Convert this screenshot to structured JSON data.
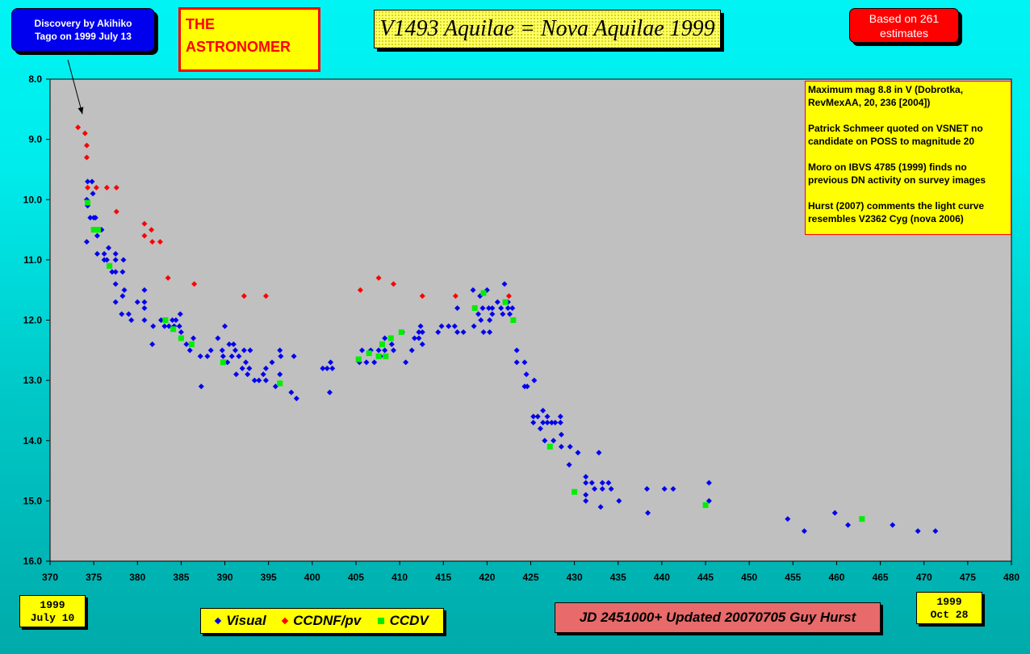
{
  "discovery_note": "Discovery by Akihiko Tago on 1999 July 13",
  "publisher": "THE ASTRONOMER",
  "based_on": "Based on 261 estimates",
  "notes": [
    "Maximum mag 8.8 in V (Dobrotka, RevMexAA, 20, 236 [2004])",
    "Patrick Schmeer quoted on VSNET no candidate on POSS to magnitude 20",
    "Moro on IBVS 4785 (1999) finds no previous DN activity on survey images",
    "Hurst (2007) comments the light curve resembles V2362 Cyg (nova 2006)"
  ],
  "date_start": {
    "year": "1999",
    "day": "July 10"
  },
  "date_end": {
    "year": "1999",
    "day": "Oct 28"
  },
  "footer": "JD 2451000+ Updated 20070705 Guy Hurst",
  "chart_data": {
    "type": "scatter",
    "title": "V1493 Aquilae = Nova Aquilae 1999",
    "xlabel": "",
    "ylabel": "",
    "xlim": [
      370,
      480
    ],
    "ylim": [
      8.0,
      16.0
    ],
    "y_inverted": true,
    "x_ticks": [
      370,
      375,
      380,
      385,
      390,
      395,
      400,
      405,
      410,
      415,
      420,
      425,
      430,
      435,
      440,
      445,
      450,
      455,
      460,
      465,
      470,
      475,
      480
    ],
    "y_ticks": [
      "8.0",
      "9.0",
      "10.0",
      "11.0",
      "12.0",
      "13.0",
      "14.0",
      "15.0",
      "16.0"
    ],
    "plot_background": "#c0c0c0",
    "grid": false,
    "legend_position": "bottom",
    "annotation_arrow": {
      "from": [
        373.7,
        8.0
      ],
      "to": [
        373.7,
        8.58
      ]
    },
    "series": [
      {
        "name": "Visual",
        "marker": "diamond",
        "color": "#0000ee",
        "points": [
          [
            374.3,
            9.7
          ],
          [
            374.8,
            9.7
          ],
          [
            374.2,
            10.0
          ],
          [
            374.3,
            10.1
          ],
          [
            374.6,
            10.3
          ],
          [
            375.0,
            10.3
          ],
          [
            375.2,
            10.3
          ],
          [
            374.9,
            9.9
          ],
          [
            374.2,
            10.7
          ],
          [
            375.4,
            10.6
          ],
          [
            375.4,
            10.9
          ],
          [
            375.9,
            10.5
          ],
          [
            376.2,
            10.9
          ],
          [
            376.2,
            11.0
          ],
          [
            376.5,
            11.0
          ],
          [
            376.7,
            10.8
          ],
          [
            376.8,
            11.1
          ],
          [
            377.1,
            11.2
          ],
          [
            377.5,
            10.9
          ],
          [
            377.5,
            11.0
          ],
          [
            377.5,
            11.2
          ],
          [
            377.5,
            11.4
          ],
          [
            377.5,
            11.7
          ],
          [
            378.4,
            11.0
          ],
          [
            378.3,
            11.2
          ],
          [
            378.3,
            11.6
          ],
          [
            378.2,
            11.9
          ],
          [
            378.5,
            11.5
          ],
          [
            379.0,
            11.9
          ],
          [
            379.3,
            12.0
          ],
          [
            380.0,
            11.7
          ],
          [
            380.8,
            11.5
          ],
          [
            380.8,
            11.7
          ],
          [
            380.8,
            11.8
          ],
          [
            380.8,
            12.0
          ],
          [
            381.8,
            12.1
          ],
          [
            381.7,
            12.4
          ],
          [
            382.7,
            12.0
          ],
          [
            383.1,
            12.1
          ],
          [
            383.6,
            12.1
          ],
          [
            384.0,
            12.0
          ],
          [
            384.2,
            12.1
          ],
          [
            384.4,
            12.0
          ],
          [
            384.8,
            12.1
          ],
          [
            384.9,
            11.9
          ],
          [
            385.0,
            12.2
          ],
          [
            385.6,
            12.4
          ],
          [
            386.0,
            12.5
          ],
          [
            386.4,
            12.3
          ],
          [
            387.3,
            13.1
          ],
          [
            387.2,
            12.6
          ],
          [
            388.0,
            12.6
          ],
          [
            388.4,
            12.5
          ],
          [
            389.2,
            12.3
          ],
          [
            389.7,
            12.5
          ],
          [
            390.0,
            12.1
          ],
          [
            389.8,
            12.6
          ],
          [
            390.3,
            12.7
          ],
          [
            390.5,
            12.4
          ],
          [
            390.8,
            12.6
          ],
          [
            391.0,
            12.4
          ],
          [
            391.2,
            12.5
          ],
          [
            391.3,
            12.9
          ],
          [
            391.6,
            12.6
          ],
          [
            392.0,
            12.8
          ],
          [
            392.2,
            12.5
          ],
          [
            392.4,
            12.7
          ],
          [
            392.6,
            12.9
          ],
          [
            392.9,
            12.5
          ],
          [
            392.8,
            12.8
          ],
          [
            393.4,
            13.0
          ],
          [
            393.9,
            13.0
          ],
          [
            394.4,
            12.9
          ],
          [
            394.7,
            12.8
          ],
          [
            394.7,
            13.0
          ],
          [
            395.4,
            12.7
          ],
          [
            395.8,
            13.1
          ],
          [
            396.3,
            12.5
          ],
          [
            396.3,
            12.9
          ],
          [
            396.4,
            12.6
          ],
          [
            397.9,
            12.6
          ],
          [
            398.2,
            13.3
          ],
          [
            397.6,
            13.2
          ],
          [
            401.2,
            12.8
          ],
          [
            401.7,
            12.8
          ],
          [
            402.1,
            12.7
          ],
          [
            402.3,
            12.8
          ],
          [
            402.0,
            13.2
          ],
          [
            405.4,
            12.7
          ],
          [
            405.7,
            12.5
          ],
          [
            406.2,
            12.7
          ],
          [
            406.7,
            12.5
          ],
          [
            407.1,
            12.7
          ],
          [
            407.6,
            12.5
          ],
          [
            407.8,
            12.6
          ],
          [
            408.3,
            12.3
          ],
          [
            408.3,
            12.5
          ],
          [
            409.1,
            12.4
          ],
          [
            409.3,
            12.5
          ],
          [
            410.3,
            12.2
          ],
          [
            410.7,
            12.7
          ],
          [
            411.4,
            12.5
          ],
          [
            411.7,
            12.3
          ],
          [
            412.2,
            12.2
          ],
          [
            412.2,
            12.3
          ],
          [
            412.4,
            12.1
          ],
          [
            412.6,
            12.2
          ],
          [
            412.6,
            12.4
          ],
          [
            414.4,
            12.2
          ],
          [
            414.8,
            12.1
          ],
          [
            415.6,
            12.1
          ],
          [
            416.3,
            12.1
          ],
          [
            416.6,
            11.8
          ],
          [
            416.6,
            12.2
          ],
          [
            417.3,
            12.2
          ],
          [
            418.4,
            11.5
          ],
          [
            418.5,
            12.1
          ],
          [
            419.0,
            11.9
          ],
          [
            419.2,
            11.6
          ],
          [
            419.3,
            12.0
          ],
          [
            419.5,
            11.8
          ],
          [
            419.6,
            12.2
          ],
          [
            420.0,
            11.5
          ],
          [
            420.2,
            11.8
          ],
          [
            420.3,
            12.0
          ],
          [
            420.3,
            12.2
          ],
          [
            420.6,
            11.8
          ],
          [
            420.6,
            11.9
          ],
          [
            421.2,
            11.7
          ],
          [
            421.6,
            11.8
          ],
          [
            421.8,
            11.9
          ],
          [
            422.0,
            11.4
          ],
          [
            422.4,
            11.7
          ],
          [
            422.4,
            11.8
          ],
          [
            422.6,
            11.9
          ],
          [
            422.9,
            11.8
          ],
          [
            423.4,
            12.5
          ],
          [
            423.4,
            12.7
          ],
          [
            424.3,
            12.7
          ],
          [
            424.5,
            12.9
          ],
          [
            424.3,
            13.1
          ],
          [
            424.6,
            13.1
          ],
          [
            425.4,
            13.0
          ],
          [
            425.3,
            13.6
          ],
          [
            425.3,
            13.7
          ],
          [
            425.8,
            13.6
          ],
          [
            426.1,
            13.8
          ],
          [
            426.4,
            13.5
          ],
          [
            426.4,
            13.7
          ],
          [
            426.6,
            14.0
          ],
          [
            426.9,
            13.6
          ],
          [
            426.9,
            13.7
          ],
          [
            427.6,
            14.0
          ],
          [
            427.4,
            13.7
          ],
          [
            427.8,
            13.7
          ],
          [
            428.4,
            13.6
          ],
          [
            428.4,
            13.7
          ],
          [
            428.5,
            13.9
          ],
          [
            428.5,
            14.1
          ],
          [
            429.5,
            14.1
          ],
          [
            429.4,
            14.4
          ],
          [
            430.4,
            14.2
          ],
          [
            431.3,
            14.6
          ],
          [
            431.3,
            14.7
          ],
          [
            431.3,
            14.9
          ],
          [
            431.3,
            15.0
          ],
          [
            432.0,
            14.7
          ],
          [
            432.3,
            14.8
          ],
          [
            432.8,
            14.2
          ],
          [
            433.0,
            15.1
          ],
          [
            433.2,
            14.7
          ],
          [
            433.2,
            14.8
          ],
          [
            433.9,
            14.7
          ],
          [
            434.2,
            14.8
          ],
          [
            435.1,
            15.0
          ],
          [
            438.3,
            14.8
          ],
          [
            438.4,
            15.2
          ],
          [
            440.3,
            14.8
          ],
          [
            441.3,
            14.8
          ],
          [
            445.4,
            14.7
          ],
          [
            445.4,
            15.0
          ],
          [
            454.4,
            15.3
          ],
          [
            456.3,
            15.5
          ],
          [
            459.8,
            15.2
          ],
          [
            461.3,
            15.4
          ],
          [
            466.4,
            15.4
          ],
          [
            469.3,
            15.5
          ],
          [
            471.3,
            15.5
          ]
        ]
      },
      {
        "name": "CCDNF/pv",
        "marker": "diamond",
        "color": "#ff0000",
        "points": [
          [
            373.2,
            8.8
          ],
          [
            374.0,
            8.9
          ],
          [
            374.2,
            9.1
          ],
          [
            374.2,
            9.3
          ],
          [
            374.3,
            9.8
          ],
          [
            375.3,
            9.8
          ],
          [
            376.5,
            9.8
          ],
          [
            377.6,
            9.8
          ],
          [
            377.6,
            10.2
          ],
          [
            380.8,
            10.4
          ],
          [
            380.8,
            10.6
          ],
          [
            381.6,
            10.5
          ],
          [
            381.7,
            10.7
          ],
          [
            382.6,
            10.7
          ],
          [
            383.5,
            11.3
          ],
          [
            386.5,
            11.4
          ],
          [
            392.2,
            11.6
          ],
          [
            394.7,
            11.6
          ],
          [
            405.5,
            11.5
          ],
          [
            407.6,
            11.3
          ],
          [
            409.3,
            11.4
          ],
          [
            412.6,
            11.6
          ],
          [
            416.4,
            11.6
          ],
          [
            422.5,
            11.6
          ]
        ]
      },
      {
        "name": "CCDV",
        "marker": "square",
        "color": "#00ee00",
        "points": [
          [
            374.3,
            10.05
          ],
          [
            375.0,
            10.5
          ],
          [
            375.5,
            10.5
          ],
          [
            376.8,
            11.1
          ],
          [
            383.2,
            12.0
          ],
          [
            384.1,
            12.15
          ],
          [
            385.0,
            12.3
          ],
          [
            386.2,
            12.4
          ],
          [
            389.8,
            12.7
          ],
          [
            396.3,
            13.05
          ],
          [
            405.3,
            12.65
          ],
          [
            406.5,
            12.55
          ],
          [
            407.6,
            12.6
          ],
          [
            408.0,
            12.4
          ],
          [
            408.4,
            12.6
          ],
          [
            409.0,
            12.3
          ],
          [
            410.2,
            12.2
          ],
          [
            418.6,
            11.8
          ],
          [
            419.6,
            11.55
          ],
          [
            422.1,
            11.7
          ],
          [
            423.0,
            12.0
          ],
          [
            427.2,
            14.1
          ],
          [
            430.0,
            14.85
          ],
          [
            445.0,
            15.07
          ],
          [
            462.9,
            15.3
          ]
        ]
      }
    ]
  }
}
